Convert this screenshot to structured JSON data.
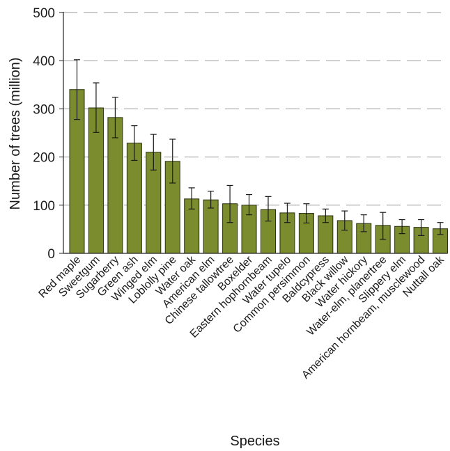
{
  "chart_data": {
    "type": "bar",
    "xlabel": "Species",
    "ylabel": "Number of trees (million)",
    "ylim": [
      0,
      500
    ],
    "yticks": [
      0,
      100,
      200,
      300,
      400,
      500
    ],
    "grid": "horizontal dashed",
    "categories": [
      "Red maple",
      "Sweetgum",
      "Sugarberry",
      "Green ash",
      "Winged elm",
      "Loblolly pine",
      "Water oak",
      "American elm",
      "Chinese tallowtree",
      "Boxelder",
      "Eastern hophornbeam",
      "Water tupelo",
      "Common persimmon",
      "Baldcypress",
      "Black willow",
      "Water hickory",
      "Water-elm, planertree",
      "Slippery elm",
      "American hornbeam, musclewood",
      "Nuttall oak"
    ],
    "values": [
      340,
      302,
      282,
      229,
      210,
      191,
      113,
      111,
      103,
      100,
      91,
      84,
      83,
      78,
      68,
      62,
      58,
      56,
      54,
      51
    ],
    "error_low": [
      278,
      251,
      240,
      193,
      173,
      146,
      92,
      94,
      64,
      80,
      67,
      64,
      63,
      64,
      48,
      45,
      29,
      41,
      37,
      39
    ],
    "error_high": [
      402,
      354,
      324,
      265,
      247,
      237,
      136,
      129,
      141,
      122,
      118,
      104,
      103,
      92,
      88,
      80,
      85,
      70,
      70,
      64
    ],
    "colors": {
      "bar_fill": "#7a8c2e",
      "bar_stroke": "#2a3010",
      "grid": "#9a9a9a",
      "axis": "#222222"
    }
  }
}
